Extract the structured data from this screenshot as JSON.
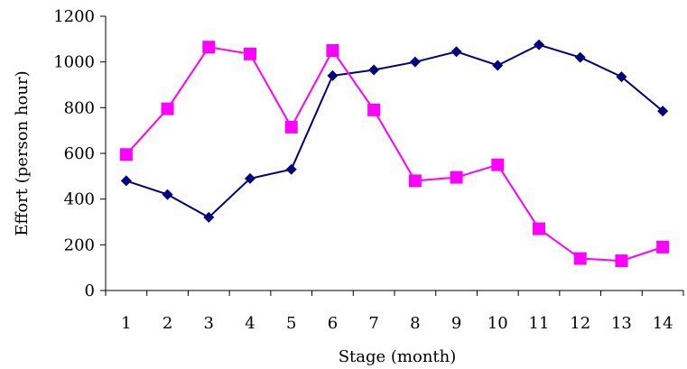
{
  "chart_data": {
    "type": "line",
    "title": "",
    "xlabel": "Stage (month)",
    "ylabel": "Effort (person hour)",
    "ylim": [
      0,
      1200
    ],
    "yticks": [
      0,
      200,
      400,
      600,
      800,
      1000,
      1200
    ],
    "x": [
      1,
      2,
      3,
      4,
      5,
      6,
      7,
      8,
      9,
      10,
      11,
      12,
      13,
      14
    ],
    "grid": false,
    "series": [
      {
        "name": "",
        "color": "#00007f",
        "marker": "diamond",
        "values": [
          480,
          420,
          320,
          490,
          530,
          940,
          965,
          1000,
          1045,
          985,
          1075,
          1020,
          935,
          785
        ]
      },
      {
        "name": "",
        "color": "#ff00ff",
        "marker": "square",
        "values": [
          595,
          795,
          1065,
          1035,
          715,
          1050,
          790,
          480,
          495,
          550,
          270,
          140,
          130,
          190
        ]
      }
    ]
  }
}
